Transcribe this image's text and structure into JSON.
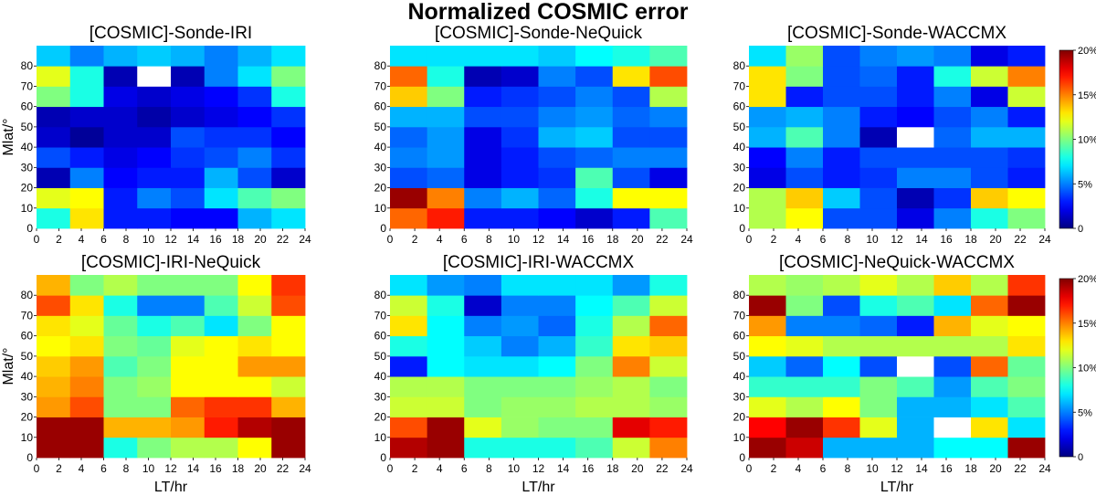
{
  "title": "Normalized COSMIC error",
  "chart_data": [
    {
      "type": "heatmap",
      "title": "[COSMIC]-Sonde-IRI",
      "xlabel": "LT/hr",
      "ylabel": "Mlat/°",
      "x_ticks": [
        "0",
        "2",
        "4",
        "6",
        "8",
        "10",
        "12",
        "14",
        "16",
        "18",
        "20",
        "22",
        "24"
      ],
      "y_ticks": [
        "0",
        "10",
        "20",
        "30",
        "40",
        "50",
        "60",
        "70",
        "80"
      ],
      "x_bins": [
        "0-3",
        "3-6",
        "6-9",
        "9-12",
        "12-15",
        "15-18",
        "18-21",
        "21-24"
      ],
      "y_bins": [
        "0-10",
        "10-20",
        "20-30",
        "30-40",
        "40-50",
        "50-60",
        "60-70",
        "70-80",
        "80-90"
      ],
      "values": [
        [
          8,
          13,
          3,
          3,
          2.5,
          2.5,
          6,
          7
        ],
        [
          12,
          12.5,
          3,
          5,
          4,
          7,
          9,
          10
        ],
        [
          1,
          5,
          2.5,
          3,
          3,
          6,
          4,
          1.5
        ],
        [
          4,
          3,
          2,
          2.5,
          3.5,
          4,
          5,
          3.5
        ],
        [
          1.5,
          0.5,
          1.5,
          1.5,
          4,
          3.5,
          3.5,
          2.5
        ],
        [
          1,
          1.5,
          1.5,
          0.8,
          1.5,
          2,
          2.5,
          3.5
        ],
        [
          10,
          8,
          2,
          1.5,
          2,
          2.5,
          3.5,
          8
        ],
        [
          12,
          8,
          1,
          null,
          1,
          5,
          7,
          10
        ],
        [
          6.5,
          5,
          6,
          6.5,
          6,
          5,
          6,
          7
        ]
      ],
      "zlim": [
        0,
        20
      ]
    },
    {
      "type": "heatmap",
      "title": "[COSMIC]-Sonde-NeQuick",
      "xlabel": "LT/hr",
      "ylabel": "",
      "x_ticks": [
        "0",
        "2",
        "4",
        "6",
        "8",
        "10",
        "12",
        "14",
        "16",
        "18",
        "20",
        "22",
        "24"
      ],
      "y_ticks": [
        "0",
        "10",
        "20",
        "30",
        "40",
        "50",
        "60",
        "70",
        "80"
      ],
      "x_bins": [
        "0-3",
        "3-6",
        "6-9",
        "9-12",
        "12-15",
        "15-18",
        "18-21",
        "21-24"
      ],
      "y_bins": [
        "0-10",
        "10-20",
        "20-30",
        "30-40",
        "40-50",
        "50-60",
        "60-70",
        "70-80",
        "80-90"
      ],
      "values": [
        [
          15.5,
          17,
          3,
          3,
          2.5,
          1.5,
          3,
          9
        ],
        [
          19.5,
          15,
          5,
          6,
          4.5,
          8,
          12.5,
          12.5
        ],
        [
          4,
          4.5,
          2,
          3,
          3.5,
          9,
          4,
          2
        ],
        [
          5,
          5.5,
          2,
          3,
          4,
          4.5,
          5,
          5
        ],
        [
          4.5,
          5.5,
          2,
          3.5,
          6,
          6.5,
          4,
          4
        ],
        [
          6,
          6,
          4,
          4,
          5,
          5.5,
          4.5,
          5
        ],
        [
          13.5,
          10,
          3,
          3.5,
          4,
          5,
          4,
          11
        ],
        [
          15.5,
          8,
          1,
          1.5,
          5,
          4,
          13,
          16
        ],
        [
          7,
          7,
          7,
          7,
          6.5,
          7.5,
          8,
          9
        ]
      ],
      "zlim": [
        0,
        20
      ]
    },
    {
      "type": "heatmap",
      "title": "[COSMIC]-Sonde-WACCMX",
      "xlabel": "LT/hr",
      "ylabel": "",
      "x_ticks": [
        "0",
        "2",
        "4",
        "6",
        "8",
        "10",
        "12",
        "14",
        "16",
        "18",
        "20",
        "22",
        "24"
      ],
      "y_ticks": [
        "0",
        "10",
        "20",
        "30",
        "40",
        "50",
        "60",
        "70",
        "80"
      ],
      "x_bins": [
        "0-3",
        "3-6",
        "6-9",
        "9-12",
        "12-15",
        "15-18",
        "18-21",
        "21-24"
      ],
      "y_bins": [
        "0-10",
        "10-20",
        "20-30",
        "30-40",
        "40-50",
        "50-60",
        "60-70",
        "70-80",
        "80-90"
      ],
      "values": [
        [
          11,
          12.5,
          4,
          4,
          2,
          5,
          8,
          10
        ],
        [
          11,
          13.5,
          6.5,
          4,
          1,
          3.5,
          13.5,
          12.5
        ],
        [
          2,
          4,
          3,
          3.5,
          5,
          5,
          4,
          3
        ],
        [
          2.5,
          5,
          3,
          4,
          4,
          4,
          4,
          3.5
        ],
        [
          6,
          9,
          5,
          1,
          null,
          4.5,
          6,
          6
        ],
        [
          5.5,
          6,
          5,
          3,
          2.5,
          4,
          5,
          3
        ],
        [
          13,
          3,
          4,
          4,
          3,
          5,
          2,
          11.5
        ],
        [
          13,
          10,
          4,
          4.5,
          3,
          8,
          11.5,
          15
        ],
        [
          7,
          10.5,
          4,
          5,
          5.5,
          5,
          2,
          3
        ]
      ],
      "zlim": [
        0,
        20
      ]
    },
    {
      "type": "heatmap",
      "title": "[COSMIC]-IRI-NeQuick",
      "xlabel": "LT/hr",
      "ylabel": "Mlat/°",
      "x_ticks": [
        "0",
        "2",
        "4",
        "6",
        "8",
        "10",
        "12",
        "14",
        "16",
        "18",
        "20",
        "22",
        "24"
      ],
      "y_ticks": [
        "0",
        "10",
        "20",
        "30",
        "40",
        "50",
        "60",
        "70",
        "80"
      ],
      "x_bins": [
        "0-3",
        "3-6",
        "6-9",
        "9-12",
        "12-15",
        "15-18",
        "18-21",
        "21-24"
      ],
      "y_bins": [
        "0-10",
        "10-20",
        "20-30",
        "30-40",
        "40-50",
        "50-60",
        "60-70",
        "70-80",
        "80-90"
      ],
      "values": [
        [
          19.5,
          19.5,
          8,
          10,
          11,
          11,
          12.5,
          19.5
        ],
        [
          19.5,
          19.5,
          14,
          14,
          14.5,
          17,
          19,
          19.5
        ],
        [
          14.5,
          16,
          10,
          10,
          15.5,
          16.5,
          16.5,
          14
        ],
        [
          14,
          15,
          10,
          10.5,
          12.5,
          12.5,
          12.5,
          11.5
        ],
        [
          13.5,
          14.5,
          9,
          10,
          12.5,
          12.5,
          14.5,
          14.5
        ],
        [
          12.5,
          13,
          10,
          9.5,
          12,
          12.5,
          13,
          12.5
        ],
        [
          13,
          12,
          9.5,
          8,
          9,
          7,
          10,
          12.5
        ],
        [
          16,
          13,
          8,
          5,
          5,
          9,
          11.5,
          16
        ],
        [
          14,
          10,
          11,
          10,
          10,
          10,
          12.5,
          16.5
        ]
      ],
      "zlim": [
        0,
        20
      ]
    },
    {
      "type": "heatmap",
      "title": "[COSMIC]-IRI-WACCMX",
      "xlabel": "LT/hr",
      "ylabel": "",
      "x_ticks": [
        "0",
        "2",
        "4",
        "6",
        "8",
        "10",
        "12",
        "14",
        "16",
        "18",
        "20",
        "22",
        "24"
      ],
      "y_ticks": [
        "0",
        "10",
        "20",
        "30",
        "40",
        "50",
        "60",
        "70",
        "80"
      ],
      "x_bins": [
        "0-3",
        "3-6",
        "6-9",
        "9-12",
        "12-15",
        "15-18",
        "18-21",
        "21-24"
      ],
      "y_bins": [
        "0-10",
        "10-20",
        "20-30",
        "30-40",
        "40-50",
        "50-60",
        "60-70",
        "70-80",
        "80-90"
      ],
      "values": [
        [
          19,
          19.5,
          8,
          8,
          8,
          9,
          11.5,
          15
        ],
        [
          16,
          19.5,
          12,
          10.5,
          10,
          10,
          18,
          17
        ],
        [
          11.5,
          11.5,
          10,
          10.5,
          10.5,
          11,
          11,
          10.5
        ],
        [
          11,
          11,
          10,
          10,
          10,
          10.5,
          11,
          10
        ],
        [
          3,
          7.5,
          7,
          7,
          7.5,
          10,
          15,
          11.5
        ],
        [
          8,
          7.5,
          6.5,
          5,
          6,
          8.5,
          13,
          13.5
        ],
        [
          13,
          7.5,
          5,
          5.5,
          4.5,
          8,
          11,
          15.5
        ],
        [
          11.5,
          8,
          1.5,
          5,
          5,
          7.5,
          9,
          11.5
        ],
        [
          7,
          5.5,
          5,
          7,
          7,
          7,
          5.5,
          8
        ]
      ],
      "zlim": [
        0,
        20
      ]
    },
    {
      "type": "heatmap",
      "title": "[COSMIC]-NeQuick-WACCMX",
      "xlabel": "LT/hr",
      "ylabel": "",
      "x_ticks": [
        "0",
        "2",
        "4",
        "6",
        "8",
        "10",
        "12",
        "14",
        "16",
        "18",
        "20",
        "22",
        "24"
      ],
      "y_ticks": [
        "0",
        "10",
        "20",
        "30",
        "40",
        "50",
        "60",
        "70",
        "80"
      ],
      "x_bins": [
        "0-3",
        "3-6",
        "6-9",
        "9-12",
        "12-15",
        "15-18",
        "18-21",
        "21-24"
      ],
      "y_bins": [
        "0-10",
        "10-20",
        "20-30",
        "30-40",
        "40-50",
        "50-60",
        "60-70",
        "70-80",
        "80-90"
      ],
      "values": [
        [
          19.5,
          18.5,
          6,
          6,
          6,
          7.5,
          7.5,
          19.5
        ],
        [
          17.5,
          19.5,
          16.5,
          12,
          6,
          null,
          13,
          7
        ],
        [
          12,
          11,
          12.5,
          10,
          6,
          6,
          7,
          9
        ],
        [
          8.5,
          8.5,
          8.5,
          10,
          9,
          5.5,
          9,
          10
        ],
        [
          6.5,
          4.5,
          7.5,
          4,
          null,
          4,
          15.5,
          9.5
        ],
        [
          12.5,
          12,
          11,
          11,
          11,
          11,
          11,
          13
        ],
        [
          14.5,
          5,
          5,
          4.5,
          3,
          14,
          12,
          12.5
        ],
        [
          19.5,
          10,
          4,
          8,
          9,
          7,
          15.5,
          19.5
        ],
        [
          11,
          10.5,
          11,
          12,
          11,
          13.5,
          11,
          16.5
        ]
      ],
      "zlim": [
        0,
        20
      ]
    }
  ],
  "colorbar": {
    "ticks": [
      "0",
      "5%",
      "10%",
      "15%",
      "20%"
    ],
    "range": [
      0,
      20
    ]
  }
}
